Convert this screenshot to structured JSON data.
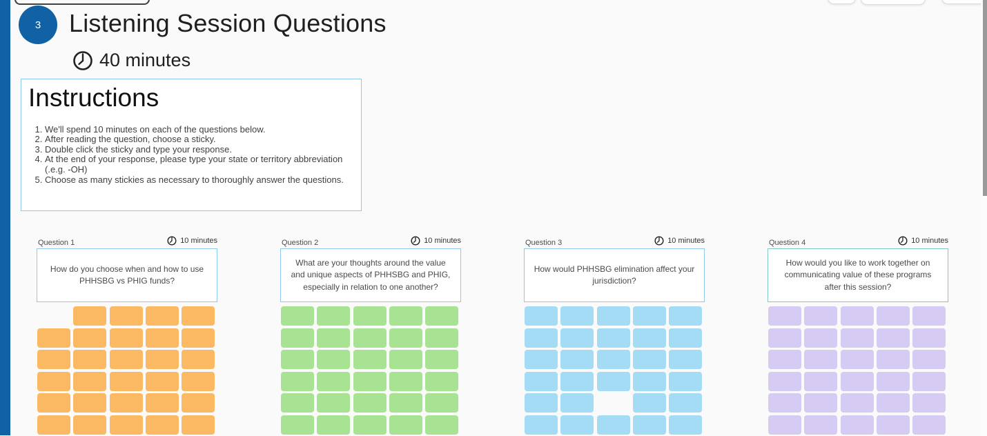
{
  "colors": {
    "accent_blue": "#1162a4",
    "box_border_blue": "#8ec8ea",
    "page_background": "#fafafa",
    "scrollbar_thumb": "#9a9a9a"
  },
  "header": {
    "step_number": "3",
    "title": "Listening Session Questions",
    "timer_label": "40 minutes"
  },
  "instructions": {
    "title": "Instructions",
    "items": [
      "We'll spend 10 minutes on each of the questions below.",
      "After reading the question, choose a sticky.",
      "Double click the sticky and type your response.",
      "At the end of your response, please type your state or territory abbreviation (.e.g.  -OH)",
      "Choose as many stickies as necessary to thoroughly answer the questions."
    ]
  },
  "questions": [
    {
      "label": "Question 1",
      "timer": "10 minutes",
      "text": "How do you choose when and how to use PHHSBG vs PHIG funds?",
      "sticky_color": "#fbb963",
      "border_color": "#8ec8ea",
      "grid": [
        [
          0,
          1,
          1,
          1,
          1
        ],
        [
          1,
          1,
          1,
          1,
          1
        ],
        [
          1,
          1,
          1,
          1,
          1
        ],
        [
          1,
          1,
          1,
          1,
          1
        ],
        [
          1,
          1,
          1,
          1,
          1
        ],
        [
          1,
          1,
          1,
          1,
          1
        ]
      ]
    },
    {
      "label": "Question 2",
      "timer": "10 minutes",
      "text": "What are your thoughts around the value and unique aspects of PHHSBG and PHIG, especially in relation to one another?",
      "sticky_color": "#a7e392",
      "border_color": "#8ec8ea",
      "grid": [
        [
          1,
          1,
          1,
          1,
          1
        ],
        [
          1,
          1,
          1,
          1,
          1
        ],
        [
          1,
          1,
          1,
          1,
          1
        ],
        [
          1,
          1,
          1,
          1,
          1
        ],
        [
          1,
          1,
          1,
          1,
          1
        ],
        [
          1,
          1,
          1,
          1,
          1
        ]
      ]
    },
    {
      "label": "Question 3",
      "timer": "10 minutes",
      "text": "How would PHHSBG elimination affect your jurisdiction?",
      "sticky_color": "#a4dbf5",
      "border_color": "#8ec8ea",
      "grid": [
        [
          1,
          1,
          1,
          1,
          1
        ],
        [
          1,
          1,
          1,
          1,
          1
        ],
        [
          1,
          1,
          1,
          1,
          1
        ],
        [
          1,
          1,
          1,
          1,
          1
        ],
        [
          1,
          1,
          0,
          1,
          1
        ],
        [
          1,
          1,
          1,
          1,
          1
        ]
      ]
    },
    {
      "label": "Question 4",
      "timer": "10 minutes",
      "text": "How would you like to work together on communicating value of these programs after this session?",
      "sticky_color": "#d5cbf3",
      "border_color": "#7fcbc4",
      "grid": [
        [
          1,
          1,
          1,
          1,
          1
        ],
        [
          1,
          1,
          1,
          1,
          1
        ],
        [
          1,
          1,
          1,
          1,
          1
        ],
        [
          1,
          1,
          1,
          1,
          1
        ],
        [
          1,
          1,
          1,
          1,
          1
        ],
        [
          1,
          1,
          1,
          1,
          1
        ]
      ]
    }
  ]
}
